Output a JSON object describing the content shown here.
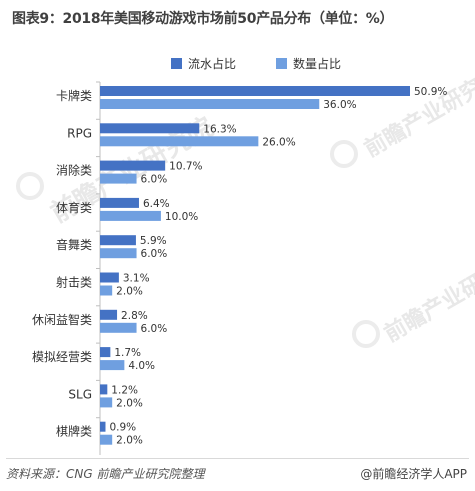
{
  "title": "图表9：2018年美国移动游戏市场前50产品分布（单位：%）",
  "legend": {
    "revenue_label": "流水占比",
    "downloads_label": "数量占比"
  },
  "colors": {
    "revenue": "#4472c4",
    "downloads": "#6f9fe0"
  },
  "watermark": "前瞻产业研究院",
  "footer": {
    "source": "资料来源：CNG  前瞻产业研究院整理",
    "credit": "@前瞻经济学人APP"
  },
  "chart_data": {
    "type": "bar",
    "orientation": "horizontal",
    "categories": [
      "卡牌类",
      "RPG",
      "消除类",
      "体育类",
      "音舞类",
      "射击类",
      "休闲益智类",
      "模拟经营类",
      "SLG",
      "棋牌类"
    ],
    "series": [
      {
        "name": "流水占比",
        "values": [
          50.9,
          16.3,
          10.7,
          6.4,
          5.9,
          3.1,
          2.8,
          1.7,
          1.2,
          0.9
        ],
        "labels": [
          "50.9%",
          "16.3%",
          "10.7%",
          "6.4%",
          "5.9%",
          "3.1%",
          "2.8%",
          "1.7%",
          "1.2%",
          "0.9%"
        ]
      },
      {
        "name": "数量占比",
        "values": [
          36.0,
          26.0,
          6.0,
          10.0,
          6.0,
          2.0,
          6.0,
          4.0,
          2.0,
          2.0
        ],
        "labels": [
          "36.0%",
          "26.0%",
          "6.0%",
          "10.0%",
          "6.0%",
          "2.0%",
          "6.0%",
          "4.0%",
          "2.0%",
          "2.0%"
        ]
      }
    ],
    "xlim": [
      0,
      50.9
    ],
    "grid": false,
    "legend_position": "top"
  }
}
